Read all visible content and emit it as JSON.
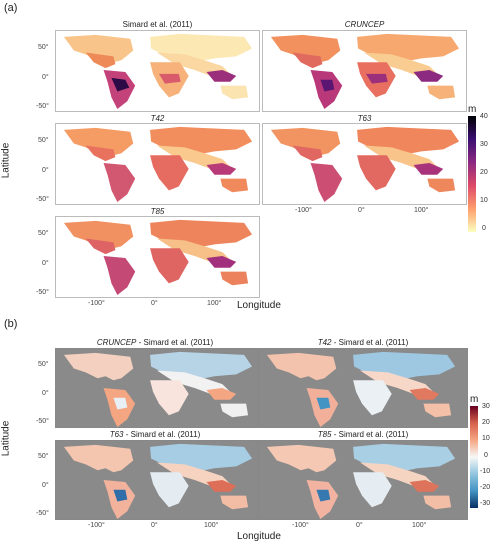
{
  "panel_a": {
    "label": "(a)",
    "maps": [
      {
        "id": "simard",
        "title_prefix": "",
        "title_suffix": "Simard et al. (2011)",
        "italic_part": ""
      },
      {
        "id": "cruncep",
        "title_prefix": "",
        "title_suffix": "",
        "italic_part": "CRUNCEP"
      },
      {
        "id": "t42",
        "title_prefix": "",
        "title_suffix": "",
        "italic_part": "T42"
      },
      {
        "id": "t63",
        "title_prefix": "",
        "title_suffix": "",
        "italic_part": "T63"
      },
      {
        "id": "t85",
        "title_prefix": "",
        "title_suffix": "",
        "italic_part": "T85"
      }
    ],
    "y_ticks": [
      "50°",
      "0°",
      "-50°"
    ],
    "x_ticks": [
      "-100°",
      "0°",
      "100°"
    ],
    "y_axis_title": "Latitude",
    "x_axis_title": "Longitude",
    "colorbar": {
      "unit": "m",
      "ticks": [
        "40",
        "30",
        "20",
        "10",
        "0"
      ],
      "colors": [
        "#000004",
        "#3b0f70",
        "#8c2981",
        "#de4968",
        "#fe9f6d",
        "#fcfdbf"
      ]
    }
  },
  "panel_b": {
    "label": "(b)",
    "maps": [
      {
        "id": "cruncep-diff",
        "italic_part": "CRUNCEP",
        "title_suffix": " - Simard et al. (2011)"
      },
      {
        "id": "t42-diff",
        "italic_part": "T42",
        "title_suffix": " - Simard et al. (2011)"
      },
      {
        "id": "t63-diff",
        "italic_part": "T63",
        "title_suffix": " - Simard et al. (2011)"
      },
      {
        "id": "t85-diff",
        "italic_part": "T85",
        "title_suffix": " - Simard et al. (2011)"
      }
    ],
    "y_ticks": [
      "50°",
      "0°",
      "-50°"
    ],
    "x_ticks": [
      "-100°",
      "0°",
      "100°"
    ],
    "y_axis_title": "Latitude",
    "x_axis_title": "Longitude",
    "colorbar": {
      "unit": "m",
      "ticks": [
        "30",
        "20",
        "10",
        "0",
        "-10",
        "-20",
        "-30"
      ],
      "colors": [
        "#67001f",
        "#d6604d",
        "#f4a582",
        "#f7f7f7",
        "#92c5de",
        "#4393c3",
        "#053061"
      ]
    }
  }
}
